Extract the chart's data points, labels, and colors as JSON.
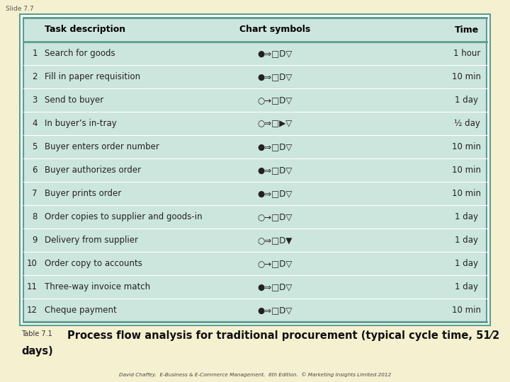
{
  "slide_label": "Slide 7.7",
  "bg_color": "#f5f0d0",
  "table_bg": "#cce5dd",
  "border_color": "#5a9e90",
  "caption_small": "Table 7.1",
  "caption_large": "Process flow analysis for traditional procurement (typical cycle time, 51⁄2",
  "caption_large2": "days)",
  "footer": "David Chaffey.  E-Business & E-Commerce Management.  6th Edition.  © Marketing Insights Limited 2012",
  "headers": [
    "Task description",
    "Chart symbols",
    "Time"
  ],
  "rows": [
    [
      "1",
      "Search for goods",
      "●⇒□D▽",
      "1 hour"
    ],
    [
      "2",
      "Fill in paper requisition",
      "●⇒□D▽",
      "10 min"
    ],
    [
      "3",
      "Send to buyer",
      "○→□D▽",
      "1 day"
    ],
    [
      "4",
      "In buyer’s in-tray",
      "○⇒□▶▽",
      "½ day"
    ],
    [
      "5",
      "Buyer enters order number",
      "●⇒□D▽",
      "10 min"
    ],
    [
      "6",
      "Buyer authorizes order",
      "●⇒□D▽",
      "10 min"
    ],
    [
      "7",
      "Buyer prints order",
      "●⇒□D▽",
      "10 min"
    ],
    [
      "8",
      "Order copies to supplier and goods-in",
      "○→□D▽",
      "1 day"
    ],
    [
      "9",
      "Delivery from supplier",
      "○⇒□D▼",
      "1 day"
    ],
    [
      "10",
      "Order copy to accounts",
      "○→□D▽",
      "1 day"
    ],
    [
      "11",
      "Three-way invoice match",
      "●⇒□D▽",
      "1 day"
    ],
    [
      "12",
      "Cheque payment",
      "●⇒□D▽",
      "10 min"
    ]
  ]
}
